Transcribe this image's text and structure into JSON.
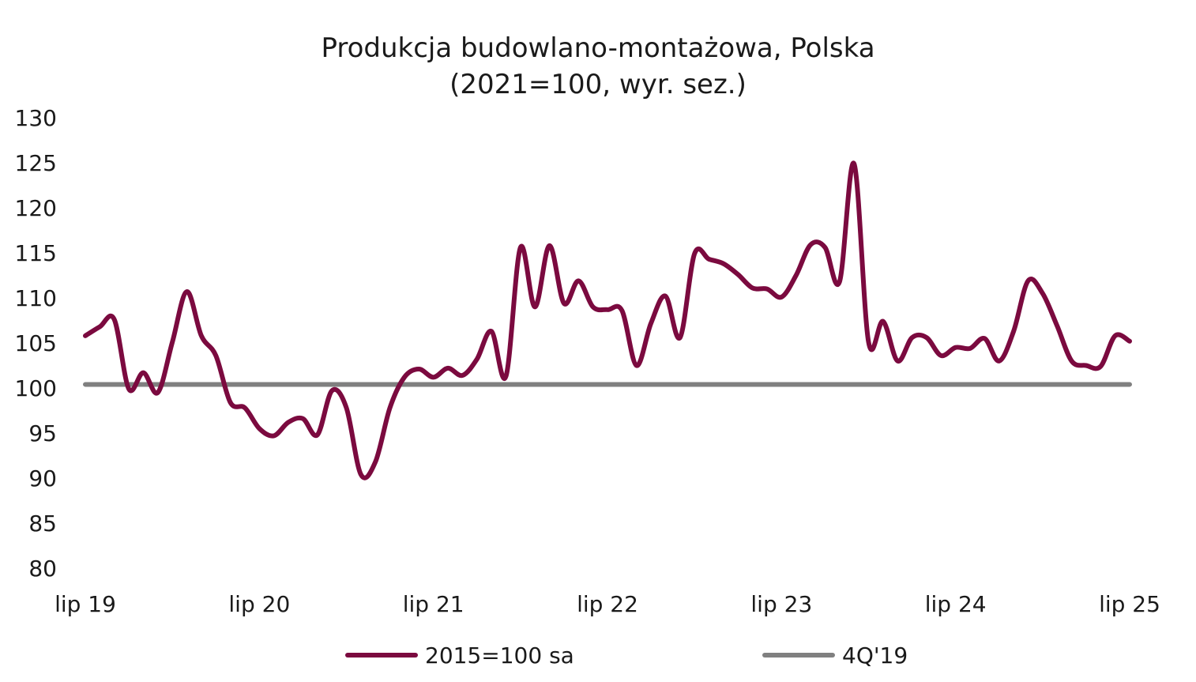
{
  "chart_data": {
    "type": "line",
    "title": "Produkcja budowlano-montażowa, Polska",
    "subtitle": "(2021=100, wyr. sez.)",
    "ylim": [
      80,
      130
    ],
    "ylabel": "",
    "xlabel": "",
    "grid": false,
    "legend_position": "bottom",
    "y_ticks": [
      "80",
      "85",
      "90",
      "95",
      "100",
      "105",
      "110",
      "115",
      "120",
      "125",
      "130"
    ],
    "x_tick_labels": [
      "lip 19",
      "lip 20",
      "lip 21",
      "lip 22",
      "lip 23",
      "lip 24",
      "lip 25"
    ],
    "x_start": "2019-07",
    "x_end": "2025-07",
    "series": [
      {
        "name": "2015=100 sa",
        "color": "#7b0a3f",
        "values": [
          105.8,
          106.8,
          107.6,
          99.9,
          101.7,
          99.5,
          105.1,
          110.7,
          105.8,
          103.6,
          98.4,
          97.8,
          95.5,
          94.7,
          96.2,
          96.6,
          94.8,
          99.7,
          97.8,
          90.4,
          91.8,
          97.8,
          101.2,
          102.1,
          101.2,
          102.2,
          101.4,
          103.2,
          106.3,
          101.3,
          115.6,
          109.0,
          115.8,
          109.4,
          111.9,
          109.0,
          108.7,
          108.6,
          102.5,
          107.2,
          110.2,
          105.6,
          114.9,
          114.3,
          113.8,
          112.6,
          111.1,
          111.0,
          110.1,
          112.5,
          115.9,
          115.6,
          111.8,
          124.9,
          105.1,
          107.4,
          103.0,
          105.6,
          105.6,
          103.6,
          104.5,
          104.4,
          105.5,
          103.0,
          106.3,
          111.9,
          110.5,
          106.9,
          103.0,
          102.5,
          102.4,
          105.8,
          105.2
        ]
      },
      {
        "name": "4Q'19",
        "color": "#808080",
        "values": [
          100.4,
          100.4
        ]
      }
    ]
  }
}
